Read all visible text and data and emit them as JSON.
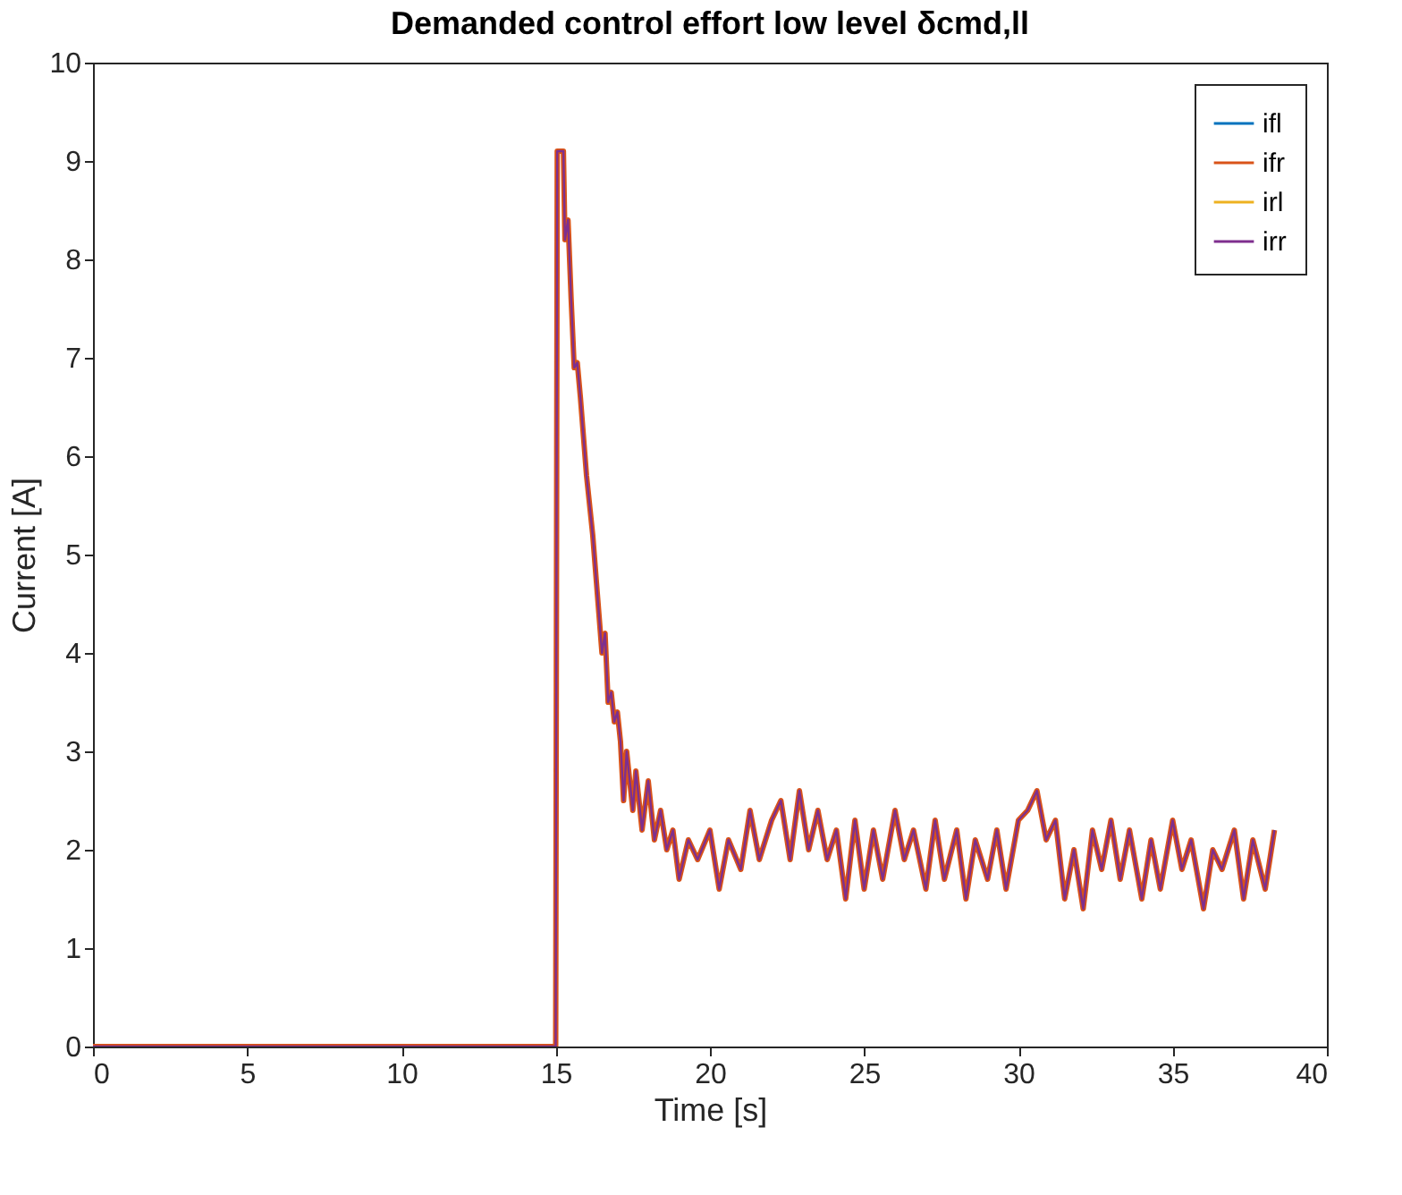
{
  "chart_data": {
    "type": "line",
    "title": "Demanded control effort low level δcmd,ll",
    "xlabel": "Time [s]",
    "ylabel": "Current [A]",
    "x": [
      0,
      15,
      15.05,
      15.25,
      15.3,
      15.4,
      15.5,
      15.6,
      15.7,
      15.8,
      16.0,
      16.2,
      16.4,
      16.5,
      16.6,
      16.7,
      16.8,
      16.9,
      17.0,
      17.1,
      17.2,
      17.3,
      17.5,
      17.6,
      17.8,
      18.0,
      18.2,
      18.4,
      18.6,
      18.8,
      19.0,
      19.3,
      19.6,
      20.0,
      20.3,
      20.6,
      21.0,
      21.3,
      21.6,
      22.0,
      22.3,
      22.6,
      22.9,
      23.2,
      23.5,
      23.8,
      24.1,
      24.4,
      24.7,
      25.0,
      25.3,
      25.6,
      26.0,
      26.3,
      26.6,
      27.0,
      27.3,
      27.6,
      28.0,
      28.3,
      28.6,
      29.0,
      29.3,
      29.6,
      30.0,
      30.3,
      30.6,
      30.9,
      31.2,
      31.5,
      31.8,
      32.1,
      32.4,
      32.7,
      33.0,
      33.3,
      33.6,
      34.0,
      34.3,
      34.6,
      35.0,
      35.3,
      35.6,
      36.0,
      36.3,
      36.6,
      37.0,
      37.3,
      37.6,
      38.0,
      38.3
    ],
    "series": [
      {
        "name": "ifl",
        "color": "#0072bd",
        "values": [
          null,
          null,
          null,
          null,
          null,
          null,
          null,
          null,
          null,
          null,
          null,
          null,
          null,
          null,
          null,
          null,
          null,
          null,
          null,
          null,
          null,
          null,
          null,
          null,
          null,
          null,
          null,
          null,
          null,
          null,
          null,
          null,
          null,
          null,
          null,
          null,
          null,
          null,
          null,
          null,
          null,
          null,
          null,
          null,
          null,
          null,
          null,
          null,
          null,
          null,
          null,
          null,
          null,
          null,
          null,
          null,
          null,
          null,
          null,
          null,
          null,
          null,
          null,
          null,
          null,
          null,
          null,
          null,
          null,
          null,
          null,
          null,
          null,
          null,
          null,
          null,
          null,
          null,
          null,
          null,
          null,
          null,
          null,
          null,
          null,
          null,
          null,
          null,
          null,
          null,
          null
        ]
      },
      {
        "name": "ifr",
        "color": "#d95319",
        "values": [
          0,
          0,
          9.1,
          9.1,
          8.2,
          8.4,
          7.6,
          6.9,
          6.95,
          6.6,
          5.8,
          5.2,
          4.4,
          4.0,
          4.2,
          3.5,
          3.6,
          3.3,
          3.4,
          3.1,
          2.5,
          3.0,
          2.4,
          2.8,
          2.2,
          2.7,
          2.1,
          2.4,
          2.0,
          2.2,
          1.7,
          2.1,
          1.9,
          2.2,
          1.6,
          2.1,
          1.8,
          2.4,
          1.9,
          2.3,
          2.5,
          1.9,
          2.6,
          2.0,
          2.4,
          1.9,
          2.2,
          1.5,
          2.3,
          1.6,
          2.2,
          1.7,
          2.4,
          1.9,
          2.2,
          1.6,
          2.3,
          1.7,
          2.2,
          1.5,
          2.1,
          1.7,
          2.2,
          1.6,
          2.3,
          2.4,
          2.6,
          2.1,
          2.3,
          1.5,
          2.0,
          1.4,
          2.2,
          1.8,
          2.3,
          1.7,
          2.2,
          1.5,
          2.1,
          1.6,
          2.3,
          1.8,
          2.1,
          1.4,
          2.0,
          1.8,
          2.2,
          1.5,
          2.1,
          1.6,
          2.2
        ]
      },
      {
        "name": "irl",
        "color": "#edb120",
        "values": [
          null,
          null,
          null,
          null,
          null,
          null,
          null,
          null,
          null,
          null,
          null,
          null,
          null,
          null,
          null,
          null,
          null,
          null,
          null,
          null,
          null,
          null,
          null,
          null,
          null,
          null,
          null,
          null,
          null,
          null,
          null,
          null,
          null,
          null,
          null,
          null,
          null,
          null,
          null,
          null,
          null,
          null,
          null,
          null,
          null,
          null,
          null,
          null,
          null,
          null,
          null,
          null,
          null,
          null,
          null,
          null,
          null,
          null,
          null,
          null,
          null,
          null,
          null,
          null,
          null,
          null,
          null,
          null,
          null,
          null,
          null,
          null,
          null,
          null,
          null,
          null,
          null,
          null,
          null,
          null,
          null,
          null,
          null,
          null,
          null,
          null,
          null,
          null,
          null,
          null,
          null
        ]
      },
      {
        "name": "irr",
        "color": "#7e2f8e",
        "values": [
          0,
          0,
          9.1,
          9.1,
          8.2,
          8.4,
          7.6,
          6.9,
          6.95,
          6.6,
          5.8,
          5.2,
          4.4,
          4.0,
          4.2,
          3.5,
          3.6,
          3.3,
          3.4,
          3.1,
          2.5,
          3.0,
          2.4,
          2.8,
          2.2,
          2.7,
          2.1,
          2.4,
          2.0,
          2.2,
          1.7,
          2.1,
          1.9,
          2.2,
          1.6,
          2.1,
          1.8,
          2.4,
          1.9,
          2.3,
          2.5,
          1.9,
          2.6,
          2.0,
          2.4,
          1.9,
          2.2,
          1.5,
          2.3,
          1.6,
          2.2,
          1.7,
          2.4,
          1.9,
          2.2,
          1.6,
          2.3,
          1.7,
          2.2,
          1.5,
          2.1,
          1.7,
          2.2,
          1.6,
          2.3,
          2.4,
          2.6,
          2.1,
          2.3,
          1.5,
          2.0,
          1.4,
          2.2,
          1.8,
          2.3,
          1.7,
          2.2,
          1.5,
          2.1,
          1.6,
          2.3,
          1.8,
          2.1,
          1.4,
          2.0,
          1.8,
          2.2,
          1.5,
          2.1,
          1.6,
          2.2
        ]
      }
    ],
    "xlim": [
      0,
      40
    ],
    "xticks": [
      0,
      5,
      10,
      15,
      20,
      25,
      30,
      35,
      40
    ],
    "ylim": [
      0,
      10
    ],
    "yticks": [
      0,
      1,
      2,
      3,
      4,
      5,
      6,
      7,
      8,
      9,
      10
    ],
    "grid": false,
    "legend": "top right",
    "marker": "none",
    "line_style": "solid"
  }
}
